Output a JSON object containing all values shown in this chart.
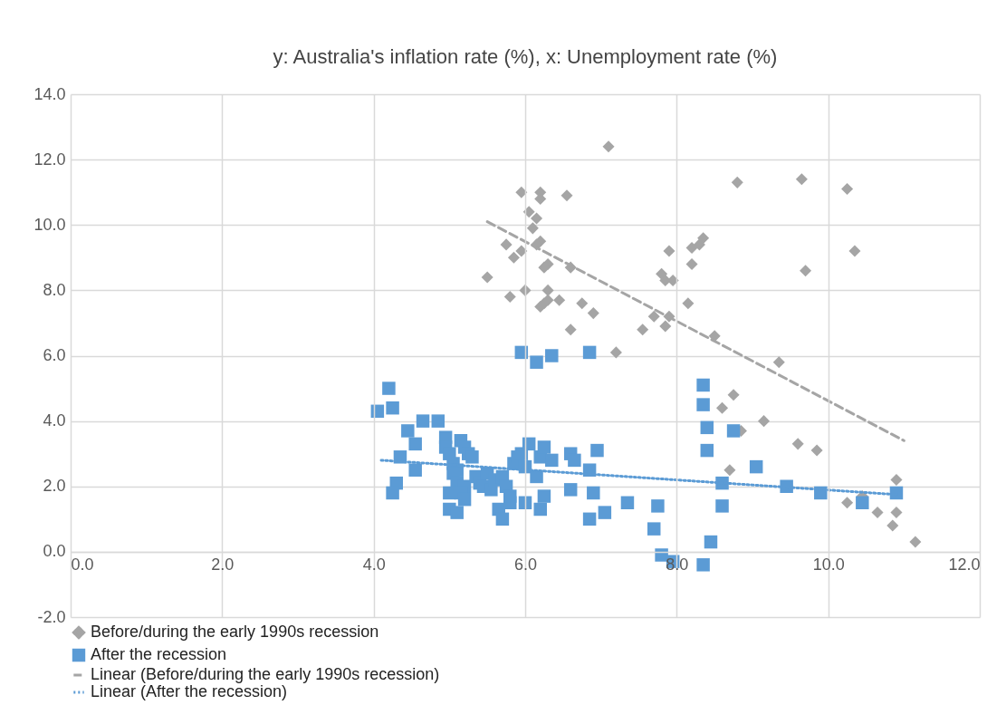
{
  "chart_data": {
    "type": "scatter",
    "title": "y: Australia's inflation rate (%), x: Unemployment rate (%)",
    "xlim": [
      0,
      12
    ],
    "xticks": [
      {
        "value": 0,
        "label": "0.0"
      },
      {
        "value": 2,
        "label": "2.0"
      },
      {
        "value": 4,
        "label": "4.0"
      },
      {
        "value": 6,
        "label": "6.0"
      },
      {
        "value": 8,
        "label": "8.0"
      },
      {
        "value": 10,
        "label": "10.0"
      },
      {
        "value": 12,
        "label": "12.0"
      }
    ],
    "ylim": [
      -2,
      14
    ],
    "yticks": [
      {
        "value": -2,
        "label": "-2.0"
      },
      {
        "value": 0,
        "label": "0.0"
      },
      {
        "value": 2,
        "label": "2.0"
      },
      {
        "value": 4,
        "label": "4.0"
      },
      {
        "value": 6,
        "label": "6.0"
      },
      {
        "value": 8,
        "label": "8.0"
      },
      {
        "value": 10,
        "label": "10.0"
      },
      {
        "value": 12,
        "label": "12.0"
      },
      {
        "value": 14,
        "label": "14.0"
      }
    ],
    "grid": true,
    "legend": "bottom",
    "series": [
      {
        "name": "Before/during the early 1990s recession",
        "marker": "diamond",
        "color": "#a5a5a5",
        "x": [
          7.1,
          5.95,
          6.2,
          6.55,
          6.2,
          6.05,
          6.15,
          6.1,
          6.2,
          6.15,
          5.75,
          5.95,
          5.85,
          6.3,
          6.25,
          6.6,
          5.5,
          5.8,
          6.0,
          6.3,
          6.45,
          6.3,
          6.2,
          6.25,
          6.75,
          6.9,
          6.6,
          7.2,
          7.55,
          7.7,
          7.8,
          7.85,
          7.95,
          7.9,
          7.9,
          7.85,
          8.2,
          8.3,
          8.35,
          8.2,
          8.15,
          8.5,
          8.8,
          9.65,
          10.25,
          9.7,
          10.35,
          9.35,
          9.15,
          8.75,
          8.6,
          8.7,
          8.85,
          9.6,
          9.85,
          10.25,
          10.45,
          10.65,
          10.85,
          10.9,
          10.9,
          11.15
        ],
        "values": [
          12.4,
          11.0,
          11.0,
          10.9,
          10.8,
          10.4,
          10.2,
          9.9,
          9.5,
          9.4,
          9.4,
          9.2,
          9.0,
          8.8,
          8.7,
          8.7,
          8.4,
          7.8,
          8.0,
          8.0,
          7.7,
          7.7,
          7.5,
          7.6,
          7.6,
          7.3,
          6.8,
          6.1,
          6.8,
          7.2,
          8.5,
          8.3,
          8.3,
          9.2,
          7.2,
          6.9,
          9.3,
          9.4,
          9.6,
          8.8,
          7.6,
          6.6,
          11.3,
          11.4,
          11.1,
          8.6,
          9.2,
          5.8,
          4.0,
          4.8,
          4.4,
          2.5,
          3.7,
          3.3,
          3.1,
          1.5,
          1.7,
          1.2,
          0.8,
          1.2,
          2.2,
          0.3
        ]
      },
      {
        "name": "After the recession",
        "marker": "square",
        "color": "#5b9bd5",
        "x": [
          5.95,
          6.15,
          6.35,
          6.85,
          4.2,
          4.05,
          4.25,
          4.65,
          4.85,
          4.45,
          4.55,
          4.35,
          4.55,
          4.3,
          4.25,
          4.95,
          4.95,
          5.0,
          5.05,
          5.1,
          5.05,
          5.15,
          5.2,
          5.25,
          5.3,
          5.1,
          5.2,
          5.35,
          5.4,
          5.5,
          5.45,
          5.55,
          5.6,
          5.7,
          5.75,
          5.8,
          5.0,
          5.15,
          5.2,
          5.0,
          5.1,
          5.65,
          5.7,
          5.8,
          5.85,
          5.9,
          5.95,
          6.05,
          6.0,
          6.15,
          6.2,
          6.25,
          6.35,
          6.6,
          6.65,
          6.95,
          6.85,
          6.9,
          6.6,
          6.25,
          6.2,
          6.0,
          6.85,
          7.05,
          7.35,
          7.75,
          7.7,
          7.8,
          7.95,
          8.35,
          8.45,
          8.35,
          8.35,
          8.4,
          8.4,
          8.75,
          9.05,
          8.6,
          8.6,
          9.45,
          9.9,
          10.45,
          10.9
        ],
        "values": [
          6.1,
          5.8,
          6.0,
          6.1,
          5.0,
          4.3,
          4.4,
          4.0,
          4.0,
          3.7,
          3.3,
          2.9,
          2.5,
          2.1,
          1.8,
          3.5,
          3.2,
          3.0,
          2.7,
          2.5,
          2.4,
          3.4,
          3.2,
          3.0,
          2.9,
          2.1,
          2.0,
          2.3,
          2.1,
          2.4,
          2.0,
          1.9,
          2.2,
          2.3,
          2.0,
          1.7,
          1.8,
          1.8,
          1.6,
          1.3,
          1.2,
          1.3,
          1.0,
          1.5,
          2.7,
          2.9,
          3.0,
          3.3,
          2.6,
          2.3,
          2.9,
          3.2,
          2.8,
          3.0,
          2.8,
          3.1,
          2.5,
          1.8,
          1.9,
          1.7,
          1.3,
          1.5,
          1.0,
          1.2,
          1.5,
          1.4,
          0.7,
          -0.1,
          -0.3,
          -0.4,
          0.3,
          5.1,
          4.5,
          3.8,
          3.1,
          3.7,
          2.6,
          2.1,
          1.4,
          2.0,
          1.8,
          1.5,
          1.8
        ]
      },
      {
        "name": "Linear (Before/during the early 1990s recession)",
        "type": "line",
        "line_style": "dashed",
        "color": "#a5a5a5",
        "x": [
          5.5,
          11.0
        ],
        "values": [
          10.1,
          3.4
        ]
      },
      {
        "name": "Linear (After the recession)",
        "type": "line",
        "line_style": "dotted",
        "color": "#5b9bd5",
        "x": [
          4.1,
          10.9
        ],
        "values": [
          2.8,
          1.75
        ]
      }
    ]
  }
}
